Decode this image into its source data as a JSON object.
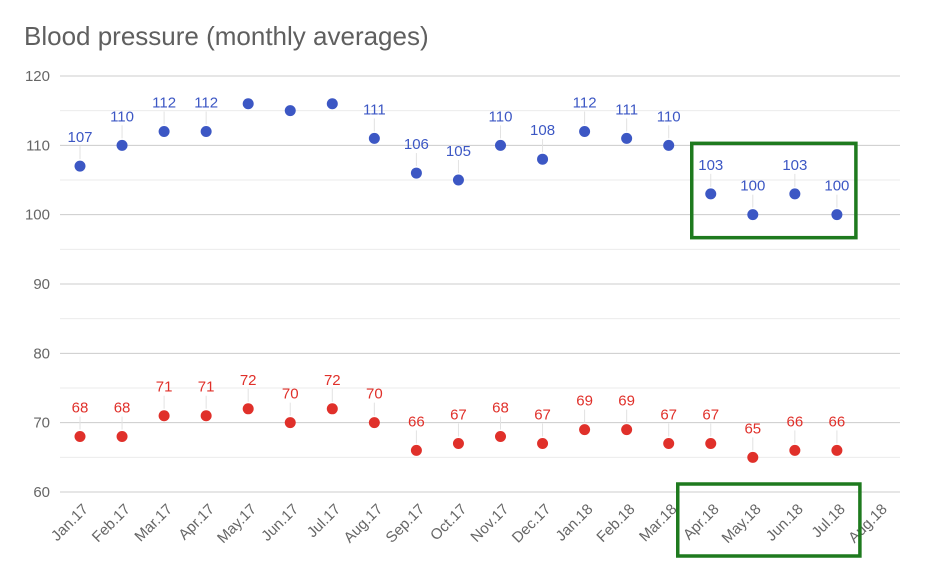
{
  "chart_data": {
    "type": "scatter",
    "title": "Blood pressure (monthly averages)",
    "xlabel": "",
    "ylabel": "",
    "ylim": [
      60,
      120
    ],
    "y_ticks": [
      60,
      70,
      80,
      90,
      100,
      110,
      120
    ],
    "grid": true,
    "categories": [
      "Jan.17",
      "Feb.17",
      "Mar.17",
      "Apr.17",
      "May.17",
      "Jun.17",
      "Jul.17",
      "Aug.17",
      "Sep.17",
      "Oct.17",
      "Nov.17",
      "Dec.17",
      "Jan.18",
      "Feb.18",
      "Mar.18",
      "Apr.18",
      "May.18",
      "Jun.18",
      "Jul.18",
      "Aug.18"
    ],
    "series": [
      {
        "color": "#3c57c4",
        "values": [
          107,
          110,
          112,
          112,
          116,
          115,
          116,
          111,
          106,
          105,
          110,
          108,
          112,
          111,
          110,
          103,
          100,
          103,
          100,
          null
        ],
        "labels": [
          "107",
          "110",
          "112",
          "112",
          "",
          "",
          "",
          "111",
          "106",
          "105",
          "110",
          "108",
          "112",
          "111",
          "110",
          "103",
          "100",
          "103",
          "100",
          ""
        ]
      },
      {
        "color": "#e0302a",
        "values": [
          68,
          68,
          71,
          71,
          72,
          70,
          72,
          70,
          66,
          67,
          68,
          67,
          69,
          69,
          67,
          67,
          65,
          66,
          66,
          null
        ],
        "labels": [
          "68",
          "68",
          "71",
          "71",
          "72",
          "70",
          "72",
          "70",
          "66",
          "67",
          "68",
          "67",
          "69",
          "69",
          "67",
          "67",
          "65",
          "66",
          "66",
          ""
        ]
      }
    ],
    "highlight_color": "#1e7a1e",
    "highlights": [
      {
        "target": "upper-series",
        "from": "Apr.18",
        "to": "Jul.18"
      },
      {
        "target": "x-axis-labels",
        "from": "Apr.18",
        "to": "Jul.18"
      }
    ]
  }
}
